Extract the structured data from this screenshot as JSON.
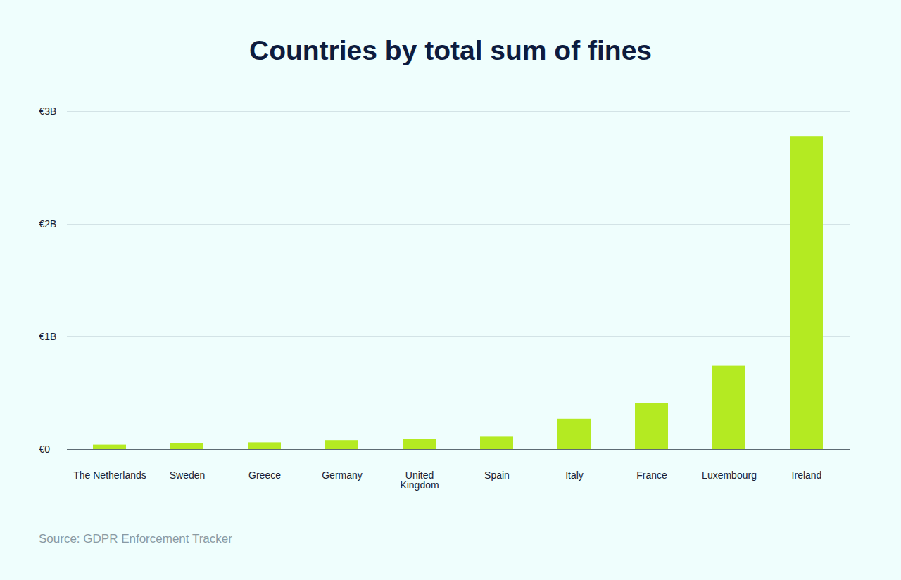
{
  "chart_data": {
    "type": "bar",
    "title": "Countries by total sum of fines",
    "categories": [
      "The Netherlands",
      "Sweden",
      "Greece",
      "Germany",
      "United\nKingdom",
      "Spain",
      "Italy",
      "France",
      "Luxembourg",
      "Ireland"
    ],
    "values": [
      0.04,
      0.05,
      0.06,
      0.08,
      0.09,
      0.11,
      0.27,
      0.41,
      0.74,
      2.78
    ],
    "color": "#b4ea22",
    "ylim": [
      0,
      3
    ],
    "yticks": [
      {
        "value": 0,
        "label": "€0"
      },
      {
        "value": 1,
        "label": "€1B"
      },
      {
        "value": 2,
        "label": "€2B"
      },
      {
        "value": 3,
        "label": "€3B"
      }
    ],
    "grid": true,
    "caption": "Source: GDPR Enforcement Tracker"
  }
}
